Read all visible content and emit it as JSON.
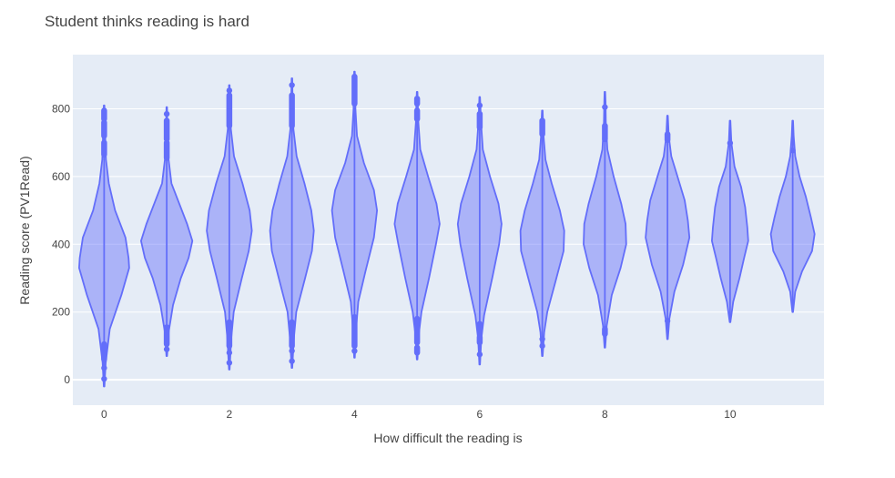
{
  "chart_data": {
    "type": "violin",
    "title": "Student thinks reading is hard",
    "xlabel": "How difficult the reading is",
    "ylabel": "Reading score (PV1Read)",
    "xlim": [
      -0.5,
      11.5
    ],
    "ylim": [
      -75,
      960
    ],
    "x_ticks": [
      0,
      2,
      4,
      6,
      8,
      10
    ],
    "y_ticks": [
      0,
      200,
      400,
      600,
      800
    ],
    "grid": true,
    "colors": {
      "plot_bg": "#e5ecf6",
      "grid": "#ffffff",
      "fill": "#636efa",
      "fill_opacity": 0.45,
      "line": "#636efa"
    },
    "violins": [
      {
        "x": 0,
        "min": -20,
        "max": 810,
        "profile": [
          [
            -20,
            0.01
          ],
          [
            50,
            0.05
          ],
          [
            150,
            0.18
          ],
          [
            250,
            0.55
          ],
          [
            330,
            0.8
          ],
          [
            360,
            0.78
          ],
          [
            420,
            0.68
          ],
          [
            500,
            0.35
          ],
          [
            580,
            0.15
          ],
          [
            650,
            0.06
          ],
          [
            730,
            0.03
          ],
          [
            810,
            0.01
          ]
        ],
        "outliers": [
          [
            0,
            5
          ],
          [
            30,
            40
          ],
          [
            60,
            105
          ],
          [
            665,
            700
          ],
          [
            720,
            760
          ],
          [
            770,
            795
          ]
        ]
      },
      {
        "x": 1,
        "min": 70,
        "max": 805,
        "profile": [
          [
            70,
            0.01
          ],
          [
            140,
            0.06
          ],
          [
            220,
            0.2
          ],
          [
            300,
            0.45
          ],
          [
            360,
            0.7
          ],
          [
            410,
            0.82
          ],
          [
            460,
            0.65
          ],
          [
            520,
            0.4
          ],
          [
            580,
            0.15
          ],
          [
            650,
            0.06
          ],
          [
            730,
            0.02
          ],
          [
            805,
            0.01
          ]
        ],
        "outliers": [
          [
            85,
            95
          ],
          [
            105,
            155
          ],
          [
            655,
            700
          ],
          [
            710,
            765
          ],
          [
            780,
            790
          ]
        ]
      },
      {
        "x": 2,
        "min": 30,
        "max": 870,
        "profile": [
          [
            30,
            0.01
          ],
          [
            120,
            0.06
          ],
          [
            200,
            0.14
          ],
          [
            300,
            0.4
          ],
          [
            380,
            0.62
          ],
          [
            440,
            0.72
          ],
          [
            500,
            0.65
          ],
          [
            580,
            0.42
          ],
          [
            660,
            0.15
          ],
          [
            740,
            0.05
          ],
          [
            820,
            0.02
          ],
          [
            870,
            0.01
          ]
        ],
        "outliers": [
          [
            45,
            55
          ],
          [
            75,
            85
          ],
          [
            100,
            170
          ],
          [
            750,
            840
          ],
          [
            850,
            858
          ]
        ]
      },
      {
        "x": 3,
        "min": 35,
        "max": 890,
        "profile": [
          [
            35,
            0.01
          ],
          [
            120,
            0.06
          ],
          [
            200,
            0.14
          ],
          [
            300,
            0.42
          ],
          [
            380,
            0.64
          ],
          [
            440,
            0.7
          ],
          [
            500,
            0.62
          ],
          [
            580,
            0.4
          ],
          [
            660,
            0.15
          ],
          [
            740,
            0.05
          ],
          [
            830,
            0.02
          ],
          [
            890,
            0.01
          ]
        ],
        "outliers": [
          [
            50,
            60
          ],
          [
            80,
            90
          ],
          [
            100,
            170
          ],
          [
            750,
            840
          ],
          [
            865,
            875
          ]
        ]
      },
      {
        "x": 4,
        "min": 65,
        "max": 910,
        "profile": [
          [
            65,
            0.01
          ],
          [
            150,
            0.05
          ],
          [
            230,
            0.12
          ],
          [
            320,
            0.35
          ],
          [
            420,
            0.62
          ],
          [
            500,
            0.72
          ],
          [
            560,
            0.62
          ],
          [
            640,
            0.3
          ],
          [
            720,
            0.08
          ],
          [
            800,
            0.03
          ],
          [
            870,
            0.02
          ],
          [
            910,
            0.01
          ]
        ],
        "outliers": [
          [
            80,
            90
          ],
          [
            100,
            185
          ],
          [
            815,
            895
          ]
        ]
      },
      {
        "x": 5,
        "min": 60,
        "max": 850,
        "profile": [
          [
            60,
            0.01
          ],
          [
            130,
            0.05
          ],
          [
            200,
            0.14
          ],
          [
            300,
            0.38
          ],
          [
            400,
            0.6
          ],
          [
            460,
            0.72
          ],
          [
            520,
            0.62
          ],
          [
            600,
            0.35
          ],
          [
            680,
            0.1
          ],
          [
            760,
            0.04
          ],
          [
            820,
            0.02
          ],
          [
            850,
            0.01
          ]
        ],
        "outliers": [
          [
            80,
            95
          ],
          [
            110,
            180
          ],
          [
            770,
            795
          ],
          [
            815,
            830
          ]
        ]
      },
      {
        "x": 6,
        "min": 45,
        "max": 835,
        "profile": [
          [
            45,
            0.01
          ],
          [
            120,
            0.05
          ],
          [
            190,
            0.14
          ],
          [
            300,
            0.4
          ],
          [
            400,
            0.62
          ],
          [
            460,
            0.7
          ],
          [
            520,
            0.6
          ],
          [
            600,
            0.33
          ],
          [
            680,
            0.1
          ],
          [
            760,
            0.04
          ],
          [
            810,
            0.02
          ],
          [
            835,
            0.01
          ]
        ],
        "outliers": [
          [
            70,
            80
          ],
          [
            110,
            125
          ],
          [
            140,
            165
          ],
          [
            745,
            785
          ],
          [
            805,
            815
          ]
        ]
      },
      {
        "x": 7,
        "min": 70,
        "max": 795,
        "profile": [
          [
            70,
            0.01
          ],
          [
            140,
            0.06
          ],
          [
            200,
            0.16
          ],
          [
            300,
            0.45
          ],
          [
            380,
            0.68
          ],
          [
            440,
            0.7
          ],
          [
            500,
            0.56
          ],
          [
            580,
            0.3
          ],
          [
            650,
            0.1
          ],
          [
            720,
            0.04
          ],
          [
            770,
            0.02
          ],
          [
            795,
            0.01
          ]
        ],
        "outliers": [
          [
            95,
            105
          ],
          [
            115,
            125
          ],
          [
            725,
            765
          ]
        ]
      },
      {
        "x": 8,
        "min": 95,
        "max": 850,
        "profile": [
          [
            95,
            0.01
          ],
          [
            160,
            0.06
          ],
          [
            250,
            0.22
          ],
          [
            330,
            0.5
          ],
          [
            400,
            0.68
          ],
          [
            460,
            0.66
          ],
          [
            520,
            0.52
          ],
          [
            600,
            0.28
          ],
          [
            680,
            0.08
          ],
          [
            760,
            0.03
          ],
          [
            820,
            0.02
          ],
          [
            850,
            0.01
          ]
        ],
        "outliers": [
          [
            135,
            150
          ],
          [
            710,
            750
          ],
          [
            800,
            810
          ]
        ]
      },
      {
        "x": 9,
        "min": 120,
        "max": 780,
        "profile": [
          [
            120,
            0.01
          ],
          [
            180,
            0.06
          ],
          [
            260,
            0.22
          ],
          [
            340,
            0.5
          ],
          [
            420,
            0.7
          ],
          [
            470,
            0.65
          ],
          [
            530,
            0.55
          ],
          [
            600,
            0.32
          ],
          [
            660,
            0.12
          ],
          [
            720,
            0.04
          ],
          [
            780,
            0.01
          ]
        ],
        "outliers": [
          [
            170,
            178
          ],
          [
            708,
            725
          ]
        ]
      },
      {
        "x": 10,
        "min": 170,
        "max": 765,
        "profile": [
          [
            170,
            0.01
          ],
          [
            230,
            0.1
          ],
          [
            300,
            0.3
          ],
          [
            360,
            0.45
          ],
          [
            410,
            0.58
          ],
          [
            450,
            0.55
          ],
          [
            510,
            0.48
          ],
          [
            570,
            0.35
          ],
          [
            630,
            0.14
          ],
          [
            700,
            0.04
          ],
          [
            765,
            0.01
          ]
        ],
        "outliers": [
          [
            695,
            703
          ]
        ]
      },
      {
        "x": 11,
        "min": 200,
        "max": 765,
        "profile": [
          [
            200,
            0.01
          ],
          [
            260,
            0.08
          ],
          [
            320,
            0.3
          ],
          [
            380,
            0.62
          ],
          [
            430,
            0.7
          ],
          [
            480,
            0.58
          ],
          [
            540,
            0.42
          ],
          [
            600,
            0.22
          ],
          [
            660,
            0.08
          ],
          [
            720,
            0.03
          ],
          [
            765,
            0.01
          ]
        ],
        "outliers": [
          [
            672,
            682
          ]
        ]
      }
    ]
  }
}
